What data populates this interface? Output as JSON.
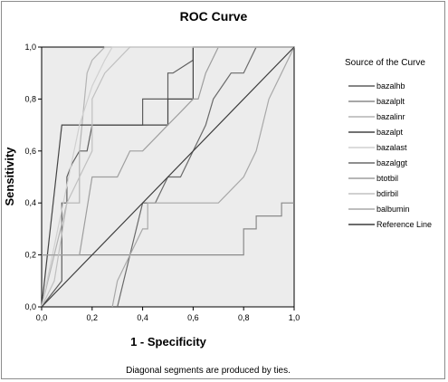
{
  "chart_data": {
    "type": "line",
    "title": "ROC Curve",
    "xlabel": "1 - Specificity",
    "ylabel": "Sensitivity",
    "xlim": [
      0,
      1
    ],
    "ylim": [
      0,
      1
    ],
    "x_ticks": [
      "0,0",
      "0,2",
      "0,4",
      "0,6",
      "0,8",
      "1,0"
    ],
    "y_ticks": [
      "0,0",
      "0,2",
      "0,4",
      "0,6",
      "0,8",
      "1,0"
    ],
    "grid": false,
    "legend_title": "Source of the Curve",
    "legend_position": "right",
    "footnote": "Diagonal segments are produced by ties.",
    "series": [
      {
        "name": "bazalhb",
        "color": "#5e5e5e",
        "x": [
          0,
          0.08,
          0.08,
          0.1,
          0.1,
          0.12,
          0.15,
          0.18,
          0.2,
          0.35,
          0.4,
          0.4,
          0.5,
          0.5,
          0.52,
          0.6,
          0.6,
          0.7,
          0.72,
          1
        ],
        "y": [
          0,
          0.1,
          0.4,
          0.4,
          0.5,
          0.55,
          0.6,
          0.6,
          0.7,
          0.7,
          0.7,
          0.8,
          0.8,
          0.9,
          0.9,
          0.95,
          1,
          1,
          1,
          1
        ]
      },
      {
        "name": "bazalplt",
        "color": "#8a8a8a",
        "x": [
          0,
          0.03,
          0.08,
          0.8,
          0.8,
          0.85,
          0.85,
          0.95,
          0.95,
          1
        ],
        "y": [
          0.2,
          0.2,
          0.2,
          0.2,
          0.3,
          0.3,
          0.35,
          0.35,
          0.4,
          0.4
        ]
      },
      {
        "name": "bazalinr",
        "color": "#b4b4b4",
        "x": [
          0,
          0.1,
          0.15,
          0.15,
          0.18,
          0.2,
          0.25,
          0.28,
          0.35
        ],
        "y": [
          0,
          0.4,
          0.4,
          0.6,
          0.9,
          0.95,
          1,
          1,
          1
        ]
      },
      {
        "name": "bazalpt",
        "color": "#444444",
        "x": [
          0,
          0.08,
          0.08,
          0.45,
          0.45,
          0.5,
          0.5,
          0.6,
          0.6,
          1
        ],
        "y": [
          0,
          0.7,
          0.7,
          0.7,
          0.7,
          0.7,
          0.8,
          0.8,
          1,
          1
        ]
      },
      {
        "name": "bazalast",
        "color": "#d0d0d0",
        "x": [
          0,
          0.15,
          0.2,
          0.25,
          0.28,
          0.32,
          0.35,
          0.4,
          0.6,
          0.8,
          1
        ],
        "y": [
          0,
          0.7,
          0.85,
          0.95,
          1,
          1,
          1,
          1,
          1,
          1,
          1
        ]
      },
      {
        "name": "bazalggt",
        "color": "#6a6a6a",
        "x": [
          0.3,
          0.35,
          0.4,
          0.45,
          0.5,
          0.55,
          0.6,
          0.65,
          0.68,
          0.75,
          0.8,
          0.85,
          0.9,
          1
        ],
        "y": [
          0,
          0.2,
          0.4,
          0.4,
          0.5,
          0.5,
          0.6,
          0.7,
          0.8,
          0.9,
          0.9,
          1,
          1,
          1
        ]
      },
      {
        "name": "btotbil",
        "color": "#9e9e9e",
        "x": [
          0,
          0.15,
          0.2,
          0.3,
          0.35,
          0.4,
          0.45,
          0.5,
          0.55,
          0.6,
          0.62,
          0.65,
          0.7,
          0.8,
          0.85,
          1
        ],
        "y": [
          0.2,
          0.2,
          0.5,
          0.5,
          0.6,
          0.6,
          0.65,
          0.7,
          0.75,
          0.8,
          0.8,
          0.9,
          1,
          1,
          1,
          1
        ]
      },
      {
        "name": "bdirbil",
        "color": "#c0c0c0",
        "x": [
          0,
          0.05,
          0.1,
          0.15,
          0.2,
          0.2,
          0.25,
          0.35,
          0.45,
          0.6,
          1
        ],
        "y": [
          0,
          0.1,
          0.4,
          0.5,
          0.6,
          0.8,
          0.9,
          1,
          1,
          1,
          1
        ]
      },
      {
        "name": "balbumin",
        "color": "#a8a8a8",
        "x": [
          0.28,
          0.3,
          0.35,
          0.4,
          0.42,
          0.42,
          0.7,
          0.8,
          0.85,
          0.85,
          0.9,
          0.9,
          0.95,
          0.95,
          1
        ],
        "y": [
          0,
          0.1,
          0.2,
          0.3,
          0.3,
          0.4,
          0.4,
          0.5,
          0.6,
          0.6,
          0.8,
          0.8,
          0.9,
          0.9,
          1
        ]
      },
      {
        "name": "Reference Line",
        "color": "#3c3c3c",
        "x": [
          0,
          1
        ],
        "y": [
          0,
          1
        ]
      }
    ]
  }
}
